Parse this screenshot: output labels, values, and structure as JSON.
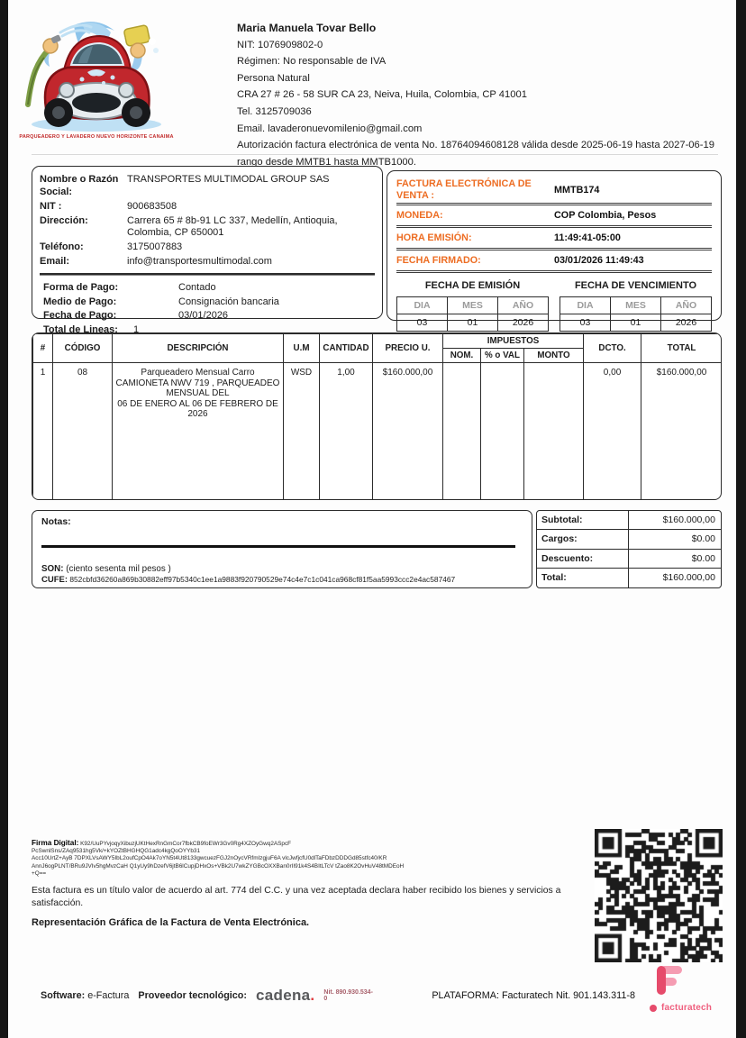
{
  "header": {
    "logo_caption": "PARQUEADERO Y LAVADERO NUEVO HORIZONTE CANAIMA",
    "company": {
      "name": "Maria Manuela Tovar Bello",
      "nit": "NIT: 1076909802-0",
      "regimen": "Régimen: No responsable de IVA",
      "persona": "Persona Natural",
      "address": "CRA 27 # 26 - 58 SUR CA 23, Neiva, Huila, Colombia, CP 41001",
      "tel": "Tel. 3125709036",
      "email": "Email. lavaderonuevomilenio@gmail.com",
      "authorization": "Autorización factura electrónica de venta No. 18764094608128 válida desde 2025-06-19 hasta 2027-06-19 rango desde MMTB1 hasta MMTB1000."
    }
  },
  "customer": {
    "fields": [
      {
        "label": "Nombre o Razón Social:",
        "value": "TRANSPORTES MULTIMODAL GROUP SAS"
      },
      {
        "label": "NIT :",
        "value": "900683508"
      },
      {
        "label": "Dirección:",
        "value": "Carrera 65 # 8b-91 LC 337, Medellín, Antioquia, Colombia, CP 650001"
      },
      {
        "label": "Teléfono:",
        "value": "3175007883"
      },
      {
        "label": "Email:",
        "value": "info@transportesmultimodal.com"
      }
    ],
    "payment_fields": [
      {
        "label": "Forma de Pago:",
        "value": "Contado"
      },
      {
        "label": "Medio de Pago:",
        "value": "Consignación bancaria"
      },
      {
        "label": "Fecha de Pago:",
        "value": "03/01/2026"
      },
      {
        "label": "Total de Lineas:",
        "value": "1"
      }
    ]
  },
  "invoice_meta": {
    "rows": [
      {
        "label": "FACTURA ELECTRÓNICA DE VENTA :",
        "value": "MMTB174"
      },
      {
        "label": "MONEDA:",
        "value": "COP Colombia, Pesos"
      },
      {
        "label": "HORA EMISIÓN:",
        "value": "11:49:41-05:00"
      },
      {
        "label": "FECHA FIRMADO:",
        "value": "03/01/2026 11:49:43"
      }
    ],
    "emission": {
      "title": "FECHA DE EMISIÓN",
      "headers": [
        "DIA",
        "MES",
        "AÑO"
      ],
      "values": [
        "03",
        "01",
        "2026"
      ]
    },
    "due": {
      "title": "FECHA DE VENCIMIENTO",
      "headers": [
        "DIA",
        "MES",
        "AÑO"
      ],
      "values": [
        "03",
        "01",
        "2026"
      ]
    }
  },
  "items": {
    "headers": {
      "num": "#",
      "code": "CÓDIGO",
      "desc": "DESCRIPCIÓN",
      "um": "U.M",
      "qty": "CANTIDAD",
      "price": "PRECIO U.",
      "taxes": "IMPUESTOS",
      "tax_nom": "NOM.",
      "tax_val": "% o VAL",
      "tax_amount": "MONTO",
      "dcto": "DCTO.",
      "total": "TOTAL"
    },
    "rows": [
      {
        "num": "1",
        "code": "08",
        "desc": "Parqueadero Mensual Carro\nCAMIONETA NWV 719 , PARQUEADEO\nMENSUAL DEL\n06 DE ENERO AL 06 DE FEBRERO DE 2026",
        "um": "WSD",
        "qty": "1,00",
        "price": "$160.000,00",
        "tax_nom": "",
        "tax_val": "",
        "tax_amount": "",
        "dcto": "0,00",
        "total": "$160.000,00"
      }
    ]
  },
  "notes": {
    "label": "Notas:",
    "son_label": "SON:",
    "son_value": "(ciento sesenta mil pesos )",
    "cufe_label": "CUFE:",
    "cufe_value": "852cbfd36260a869b30882eff97b5340c1ee1a9883f920790529e74c4e7c1c041ca968cf81f5aa5993ccc2e4ac587467"
  },
  "totals": {
    "rows": [
      {
        "label": "Subtotal:",
        "value": "$160.000,00"
      },
      {
        "label": "Cargos:",
        "value": "$0.00"
      },
      {
        "label": "Descuento:",
        "value": "$0.00"
      },
      {
        "label": "Total:",
        "value": "$160.000,00"
      }
    ]
  },
  "signature": {
    "label": "Firma Digital:",
    "value": "K92/UuPYvjoqyXibuzjUKtHexRnGmCor7fbkCB9foEWr3Gv0Rg4XZOyGwq2ASpcF\nPcSwnlSns/ZAq9531hg5Vk/+kYOZtBHGHQG1adc4kgQoOYYb31\nAcc10UrtZ+AyB 7DPXLVsAWY5IbL2oufCpO4Ak7oYN5t4Ut8133gwcuezFGJ2nOycVRfmIzgjuF6A vlcJwfjcfU0dlTaFDbzDDDGd85stfc40/KR\nAnnJ6ogPLNT/BRu9JVIv5hgMvzCaH Q1yUy9hDzefV6jtB6lCupjDHxOs+VBk2U7wkZYGBcOXXBan0rII91k4S4BItLTcV tZao8K2OvHuV48tMDEoH\n+Q==",
    "legal": "Esta factura es un título valor de acuerdo al art. 774 del C.C. y una vez aceptada declara haber recibido los bienes y servicios a satisfacción.",
    "representation": "Representación Gráfica de la Factura de Venta Electrónica."
  },
  "footer": {
    "software_label": "Software:",
    "software_value": "e-Factura",
    "provider_label": "Proveedor tecnológico:",
    "provider_brand": "cadena",
    "provider_brand_dot": ".",
    "provider_nit": "Nit. 890.930.534-0",
    "platform": "PLATAFORMA: Facturatech Nit. 901.143.311-8",
    "brand2": "facturatech"
  },
  "colors": {
    "accent_orange": "#ed6d23",
    "brand_pink": "#e64b6b",
    "brand_pink_light": "#f59cb2",
    "cadena_red": "#e03a3e"
  }
}
